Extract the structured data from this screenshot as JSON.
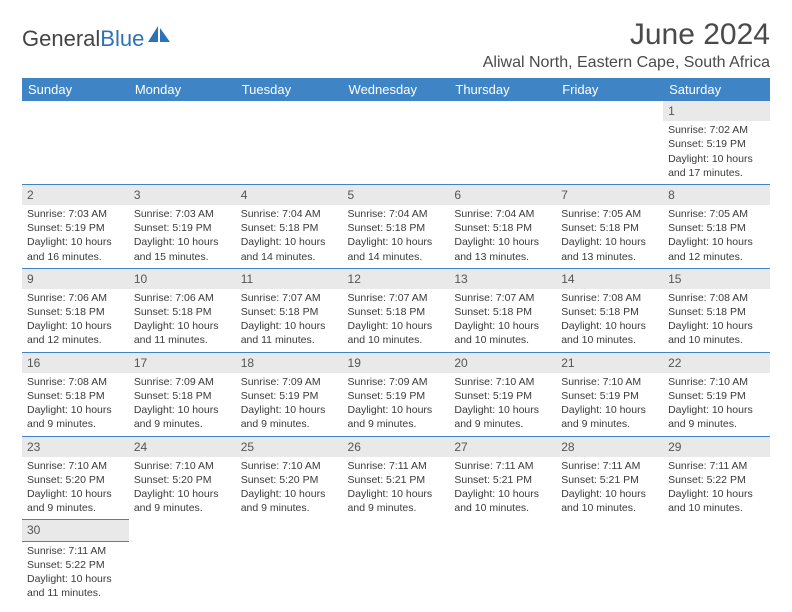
{
  "brand": {
    "part1": "General",
    "part2": "Blue",
    "icon_color": "#2d72b8"
  },
  "header": {
    "month_title": "June 2024",
    "location": "Aliwal North, Eastern Cape, South Africa"
  },
  "colors": {
    "header_bg": "#3f85c6",
    "daynum_bg": "#e9e9e9",
    "text": "#3a3a3a"
  },
  "day_headers": [
    "Sunday",
    "Monday",
    "Tuesday",
    "Wednesday",
    "Thursday",
    "Friday",
    "Saturday"
  ],
  "weeks": [
    [
      {
        "empty": true
      },
      {
        "empty": true
      },
      {
        "empty": true
      },
      {
        "empty": true
      },
      {
        "empty": true
      },
      {
        "empty": true
      },
      {
        "n": "1",
        "sunrise": "Sunrise: 7:02 AM",
        "sunset": "Sunset: 5:19 PM",
        "d1": "Daylight: 10 hours",
        "d2": "and 17 minutes."
      }
    ],
    [
      {
        "n": "2",
        "sunrise": "Sunrise: 7:03 AM",
        "sunset": "Sunset: 5:19 PM",
        "d1": "Daylight: 10 hours",
        "d2": "and 16 minutes."
      },
      {
        "n": "3",
        "sunrise": "Sunrise: 7:03 AM",
        "sunset": "Sunset: 5:19 PM",
        "d1": "Daylight: 10 hours",
        "d2": "and 15 minutes."
      },
      {
        "n": "4",
        "sunrise": "Sunrise: 7:04 AM",
        "sunset": "Sunset: 5:18 PM",
        "d1": "Daylight: 10 hours",
        "d2": "and 14 minutes."
      },
      {
        "n": "5",
        "sunrise": "Sunrise: 7:04 AM",
        "sunset": "Sunset: 5:18 PM",
        "d1": "Daylight: 10 hours",
        "d2": "and 14 minutes."
      },
      {
        "n": "6",
        "sunrise": "Sunrise: 7:04 AM",
        "sunset": "Sunset: 5:18 PM",
        "d1": "Daylight: 10 hours",
        "d2": "and 13 minutes."
      },
      {
        "n": "7",
        "sunrise": "Sunrise: 7:05 AM",
        "sunset": "Sunset: 5:18 PM",
        "d1": "Daylight: 10 hours",
        "d2": "and 13 minutes."
      },
      {
        "n": "8",
        "sunrise": "Sunrise: 7:05 AM",
        "sunset": "Sunset: 5:18 PM",
        "d1": "Daylight: 10 hours",
        "d2": "and 12 minutes."
      }
    ],
    [
      {
        "n": "9",
        "sunrise": "Sunrise: 7:06 AM",
        "sunset": "Sunset: 5:18 PM",
        "d1": "Daylight: 10 hours",
        "d2": "and 12 minutes."
      },
      {
        "n": "10",
        "sunrise": "Sunrise: 7:06 AM",
        "sunset": "Sunset: 5:18 PM",
        "d1": "Daylight: 10 hours",
        "d2": "and 11 minutes."
      },
      {
        "n": "11",
        "sunrise": "Sunrise: 7:07 AM",
        "sunset": "Sunset: 5:18 PM",
        "d1": "Daylight: 10 hours",
        "d2": "and 11 minutes."
      },
      {
        "n": "12",
        "sunrise": "Sunrise: 7:07 AM",
        "sunset": "Sunset: 5:18 PM",
        "d1": "Daylight: 10 hours",
        "d2": "and 10 minutes."
      },
      {
        "n": "13",
        "sunrise": "Sunrise: 7:07 AM",
        "sunset": "Sunset: 5:18 PM",
        "d1": "Daylight: 10 hours",
        "d2": "and 10 minutes."
      },
      {
        "n": "14",
        "sunrise": "Sunrise: 7:08 AM",
        "sunset": "Sunset: 5:18 PM",
        "d1": "Daylight: 10 hours",
        "d2": "and 10 minutes."
      },
      {
        "n": "15",
        "sunrise": "Sunrise: 7:08 AM",
        "sunset": "Sunset: 5:18 PM",
        "d1": "Daylight: 10 hours",
        "d2": "and 10 minutes."
      }
    ],
    [
      {
        "n": "16",
        "sunrise": "Sunrise: 7:08 AM",
        "sunset": "Sunset: 5:18 PM",
        "d1": "Daylight: 10 hours",
        "d2": "and 9 minutes."
      },
      {
        "n": "17",
        "sunrise": "Sunrise: 7:09 AM",
        "sunset": "Sunset: 5:18 PM",
        "d1": "Daylight: 10 hours",
        "d2": "and 9 minutes."
      },
      {
        "n": "18",
        "sunrise": "Sunrise: 7:09 AM",
        "sunset": "Sunset: 5:19 PM",
        "d1": "Daylight: 10 hours",
        "d2": "and 9 minutes."
      },
      {
        "n": "19",
        "sunrise": "Sunrise: 7:09 AM",
        "sunset": "Sunset: 5:19 PM",
        "d1": "Daylight: 10 hours",
        "d2": "and 9 minutes."
      },
      {
        "n": "20",
        "sunrise": "Sunrise: 7:10 AM",
        "sunset": "Sunset: 5:19 PM",
        "d1": "Daylight: 10 hours",
        "d2": "and 9 minutes."
      },
      {
        "n": "21",
        "sunrise": "Sunrise: 7:10 AM",
        "sunset": "Sunset: 5:19 PM",
        "d1": "Daylight: 10 hours",
        "d2": "and 9 minutes."
      },
      {
        "n": "22",
        "sunrise": "Sunrise: 7:10 AM",
        "sunset": "Sunset: 5:19 PM",
        "d1": "Daylight: 10 hours",
        "d2": "and 9 minutes."
      }
    ],
    [
      {
        "n": "23",
        "sunrise": "Sunrise: 7:10 AM",
        "sunset": "Sunset: 5:20 PM",
        "d1": "Daylight: 10 hours",
        "d2": "and 9 minutes."
      },
      {
        "n": "24",
        "sunrise": "Sunrise: 7:10 AM",
        "sunset": "Sunset: 5:20 PM",
        "d1": "Daylight: 10 hours",
        "d2": "and 9 minutes."
      },
      {
        "n": "25",
        "sunrise": "Sunrise: 7:10 AM",
        "sunset": "Sunset: 5:20 PM",
        "d1": "Daylight: 10 hours",
        "d2": "and 9 minutes."
      },
      {
        "n": "26",
        "sunrise": "Sunrise: 7:11 AM",
        "sunset": "Sunset: 5:21 PM",
        "d1": "Daylight: 10 hours",
        "d2": "and 9 minutes."
      },
      {
        "n": "27",
        "sunrise": "Sunrise: 7:11 AM",
        "sunset": "Sunset: 5:21 PM",
        "d1": "Daylight: 10 hours",
        "d2": "and 10 minutes."
      },
      {
        "n": "28",
        "sunrise": "Sunrise: 7:11 AM",
        "sunset": "Sunset: 5:21 PM",
        "d1": "Daylight: 10 hours",
        "d2": "and 10 minutes."
      },
      {
        "n": "29",
        "sunrise": "Sunrise: 7:11 AM",
        "sunset": "Sunset: 5:22 PM",
        "d1": "Daylight: 10 hours",
        "d2": "and 10 minutes."
      }
    ],
    [
      {
        "n": "30",
        "sunrise": "Sunrise: 7:11 AM",
        "sunset": "Sunset: 5:22 PM",
        "d1": "Daylight: 10 hours",
        "d2": "and 11 minutes.",
        "last": true
      },
      {
        "empty": true
      },
      {
        "empty": true
      },
      {
        "empty": true
      },
      {
        "empty": true
      },
      {
        "empty": true
      },
      {
        "empty": true
      }
    ]
  ]
}
